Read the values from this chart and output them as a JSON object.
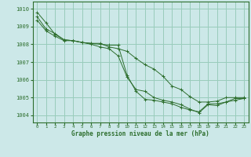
{
  "title": "Graphe pression niveau de la mer (hPa)",
  "background_color": "#cce8e8",
  "grid_color": "#99ccbb",
  "line_color": "#2d6e2d",
  "xlim": [
    -0.5,
    23.5
  ],
  "ylim": [
    1003.6,
    1010.4
  ],
  "yticks": [
    1004,
    1005,
    1006,
    1007,
    1008,
    1009,
    1010
  ],
  "xticks": [
    0,
    1,
    2,
    3,
    4,
    5,
    6,
    7,
    8,
    9,
    10,
    11,
    12,
    13,
    14,
    15,
    16,
    17,
    18,
    19,
    20,
    21,
    22,
    23
  ],
  "series": [
    [
      1009.8,
      1009.2,
      1008.55,
      1008.25,
      1008.2,
      1008.1,
      1008.05,
      1008.05,
      1007.85,
      1007.75,
      1007.6,
      1007.2,
      1006.85,
      1006.6,
      1006.2,
      1005.65,
      1005.45,
      1005.05,
      1004.75,
      1004.75,
      1004.8,
      1005.0,
      1005.0,
      1005.0
    ],
    [
      1009.35,
      1008.75,
      1008.45,
      1008.2,
      1008.2,
      1008.1,
      1008.05,
      1008.0,
      1007.95,
      1007.95,
      1006.25,
      1005.35,
      1004.9,
      1004.85,
      1004.75,
      1004.65,
      1004.45,
      1004.3,
      1004.2,
      1004.65,
      1004.65,
      1004.75,
      1004.95,
      1004.95
    ],
    [
      1009.55,
      1008.85,
      1008.6,
      1008.25,
      1008.2,
      1008.1,
      1008.0,
      1007.85,
      1007.75,
      1007.35,
      1006.15,
      1005.45,
      1005.35,
      1005.0,
      1004.85,
      1004.75,
      1004.6,
      1004.35,
      1004.15,
      1004.6,
      1004.55,
      1004.75,
      1004.85,
      1004.95
    ]
  ]
}
